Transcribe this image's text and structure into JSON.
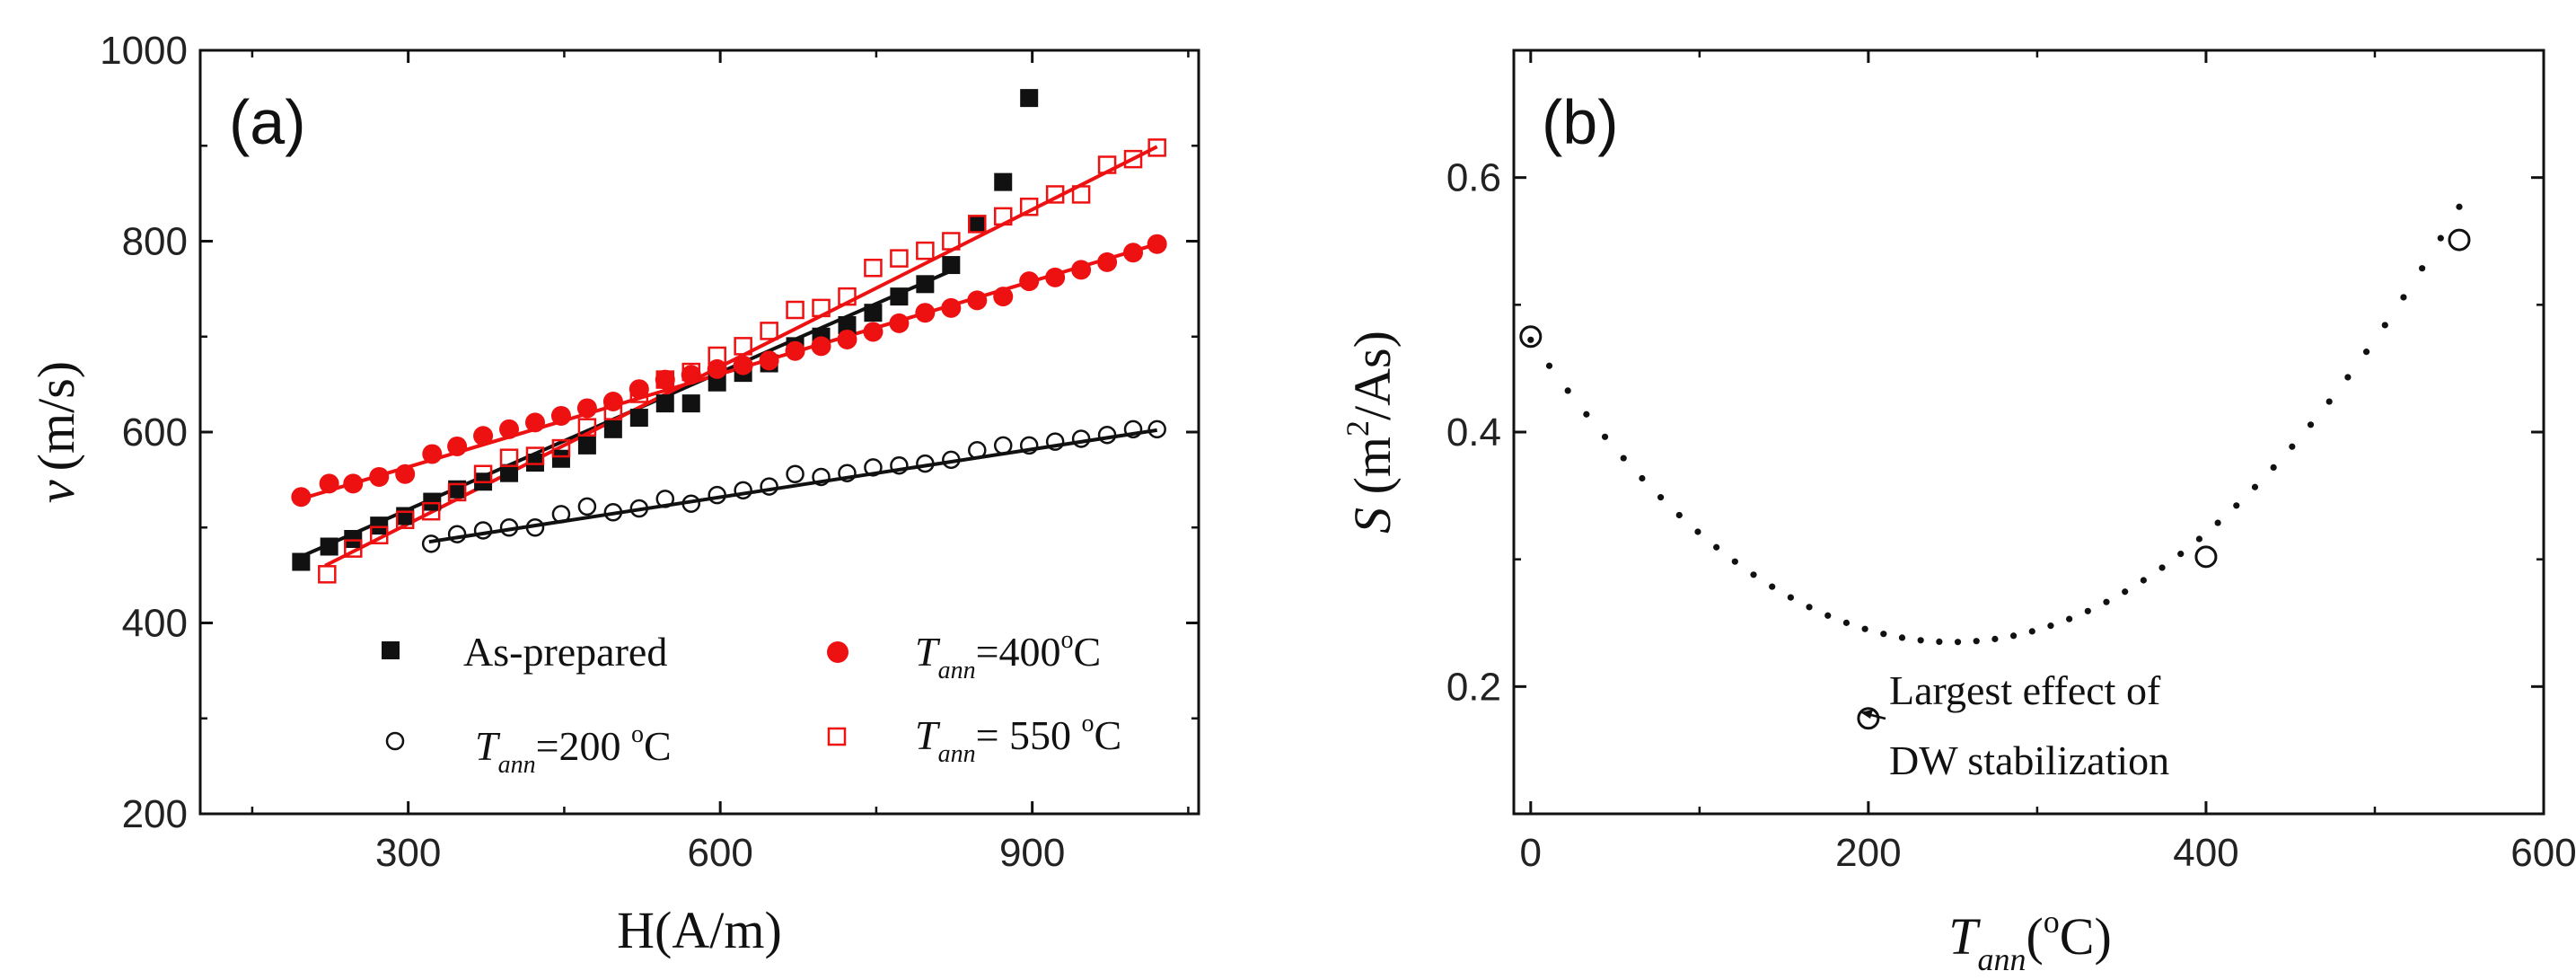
{
  "chart_data": [
    {
      "panel_label": "(a)",
      "type": "scatter",
      "xlabel": "H(A/m)",
      "ylabel": "(m/s)",
      "ylabel_symbol": "v",
      "xlim": [
        100,
        1060
      ],
      "ylim": [
        200,
        1000
      ],
      "xticks": [
        300,
        600,
        900
      ],
      "yticks": [
        200,
        400,
        600,
        800,
        1000
      ],
      "legend": [
        {
          "label": "As-prepared",
          "marker": "square-filled",
          "color": "#111111"
        },
        {
          "label_symbol": "T",
          "label_subscript": "ann",
          "label_value": "=200 ",
          "label_unit": "C",
          "label_degree": "o",
          "marker": "circle-open",
          "color": "#111111"
        },
        {
          "label_symbol": "T",
          "label_subscript": "ann",
          "label_value": "=400",
          "label_unit": "C",
          "label_degree": "o",
          "marker": "circle-filled",
          "color": "#ee1111"
        },
        {
          "label_symbol": "T",
          "label_subscript": "ann",
          "label_value": "= 550 ",
          "label_unit": "C",
          "label_degree": "o",
          "marker": "square-open",
          "color": "#ee1111"
        }
      ],
      "series": [
        {
          "name": "As-prepared",
          "marker": "square-filled",
          "color": "#111111",
          "points": [
            [
              197,
              464
            ],
            [
              224,
              480
            ],
            [
              247,
              488
            ],
            [
              272,
              502
            ],
            [
              297,
              512
            ],
            [
              323,
              527
            ],
            [
              347,
              540
            ],
            [
              372,
              548
            ],
            [
              397,
              557
            ],
            [
              422,
              568
            ],
            [
              447,
              572
            ],
            [
              472,
              586
            ],
            [
              497,
              603
            ],
            [
              522,
              615
            ],
            [
              547,
              630
            ],
            [
              572,
              630
            ],
            [
              597,
              652
            ],
            [
              622,
              662
            ],
            [
              647,
              672
            ],
            [
              672,
              690
            ],
            [
              697,
              700
            ],
            [
              722,
              712
            ],
            [
              747,
              725
            ],
            [
              772,
              742
            ],
            [
              797,
              755
            ],
            [
              822,
              775
            ],
            [
              847,
              818
            ],
            [
              872,
              862
            ],
            [
              897,
              950
            ]
          ],
          "fit": [
            [
              200,
              471
            ],
            [
              820,
              768
            ]
          ]
        },
        {
          "name": "T_ann=200 °C",
          "marker": "circle-open",
          "color": "#111111",
          "points": [
            [
              322,
              483
            ],
            [
              347,
              493
            ],
            [
              372,
              497
            ],
            [
              397,
              500
            ],
            [
              422,
              500
            ],
            [
              447,
              514
            ],
            [
              472,
              522
            ],
            [
              497,
              516
            ],
            [
              522,
              520
            ],
            [
              547,
              530
            ],
            [
              572,
              525
            ],
            [
              597,
              534
            ],
            [
              622,
              539
            ],
            [
              647,
              543
            ],
            [
              672,
              556
            ],
            [
              697,
              553
            ],
            [
              722,
              557
            ],
            [
              747,
              563
            ],
            [
              772,
              565
            ],
            [
              797,
              567
            ],
            [
              822,
              571
            ],
            [
              847,
              581
            ],
            [
              872,
              586
            ],
            [
              897,
              586
            ],
            [
              922,
              590
            ],
            [
              947,
              593
            ],
            [
              972,
              597
            ],
            [
              997,
              603
            ],
            [
              1020,
              603
            ]
          ],
          "fit": [
            [
              320,
              485
            ],
            [
              1020,
              602
            ]
          ]
        },
        {
          "name": "T_ann=400 °C",
          "marker": "circle-filled",
          "color": "#ee1111",
          "points": [
            [
              197,
              532
            ],
            [
              224,
              546
            ],
            [
              247,
              546
            ],
            [
              272,
              553
            ],
            [
              297,
              556
            ],
            [
              323,
              577
            ],
            [
              347,
              585
            ],
            [
              372,
              596
            ],
            [
              397,
              603
            ],
            [
              422,
              610
            ],
            [
              447,
              617
            ],
            [
              472,
              625
            ],
            [
              497,
              632
            ],
            [
              522,
              645
            ],
            [
              547,
              655
            ],
            [
              572,
              660
            ],
            [
              597,
              666
            ],
            [
              622,
              670
            ],
            [
              647,
              675
            ],
            [
              672,
              685
            ],
            [
              697,
              690
            ],
            [
              722,
              697
            ],
            [
              747,
              705
            ],
            [
              772,
              714
            ],
            [
              797,
              725
            ],
            [
              822,
              730
            ],
            [
              847,
              738
            ],
            [
              872,
              742
            ],
            [
              897,
              758
            ],
            [
              922,
              762
            ],
            [
              947,
              770
            ],
            [
              972,
              778
            ],
            [
              997,
              788
            ],
            [
              1020,
              797
            ]
          ],
          "fit": [
            [
              200,
              531
            ],
            [
              1020,
              797
            ]
          ]
        },
        {
          "name": "T_ann=550 °C",
          "marker": "square-open",
          "color": "#ee1111",
          "points": [
            [
              222,
              451
            ],
            [
              247,
              478
            ],
            [
              272,
              492
            ],
            [
              297,
              508
            ],
            [
              322,
              517
            ],
            [
              347,
              537
            ],
            [
              372,
              556
            ],
            [
              397,
              573
            ],
            [
              422,
              575
            ],
            [
              447,
              583
            ],
            [
              472,
              605
            ],
            [
              497,
              622
            ],
            [
              522,
              640
            ],
            [
              547,
              655
            ],
            [
              572,
              663
            ],
            [
              597,
              680
            ],
            [
              622,
              690
            ],
            [
              647,
              706
            ],
            [
              672,
              728
            ],
            [
              697,
              730
            ],
            [
              722,
              742
            ],
            [
              747,
              772
            ],
            [
              772,
              782
            ],
            [
              797,
              790
            ],
            [
              822,
              800
            ],
            [
              847,
              818
            ],
            [
              872,
              826
            ],
            [
              897,
              836
            ],
            [
              922,
              849
            ],
            [
              947,
              849
            ],
            [
              972,
              880
            ],
            [
              997,
              886
            ],
            [
              1020,
              898
            ]
          ],
          "fit": [
            [
              220,
              460
            ],
            [
              1020,
              899
            ]
          ]
        }
      ]
    },
    {
      "panel_label": "(b)",
      "type": "scatter",
      "xlabel_symbol": "T",
      "xlabel_subscript": "ann",
      "xlabel_unit_open": "(",
      "xlabel_degree": "o",
      "xlabel_unit_close": "C)",
      "ylabel_symbol": "S",
      "ylabel_open": " (m",
      "ylabel_exponent": "2",
      "ylabel_close": "/As)",
      "xlim": [
        -10,
        600
      ],
      "ylim": [
        0.1,
        0.7
      ],
      "xticks": [
        0,
        200,
        400,
        600
      ],
      "yticks": [
        0.2,
        0.4,
        0.6
      ],
      "points": [
        {
          "x": 0,
          "y": 0.475
        },
        {
          "x": 200,
          "y": 0.175
        },
        {
          "x": 400,
          "y": 0.302
        },
        {
          "x": 550,
          "y": 0.551
        }
      ],
      "fit_curve": {
        "style": "dotted",
        "description": "quadratic fit",
        "x_range": [
          0,
          550
        ],
        "vertex": [
          250,
          0.235
        ],
        "a": 3.8e-06
      },
      "annotation": {
        "lines": [
          "Largest effect of",
          "DW stabilization"
        ],
        "points_to_x": 200,
        "points_to_y": 0.175
      }
    }
  ]
}
